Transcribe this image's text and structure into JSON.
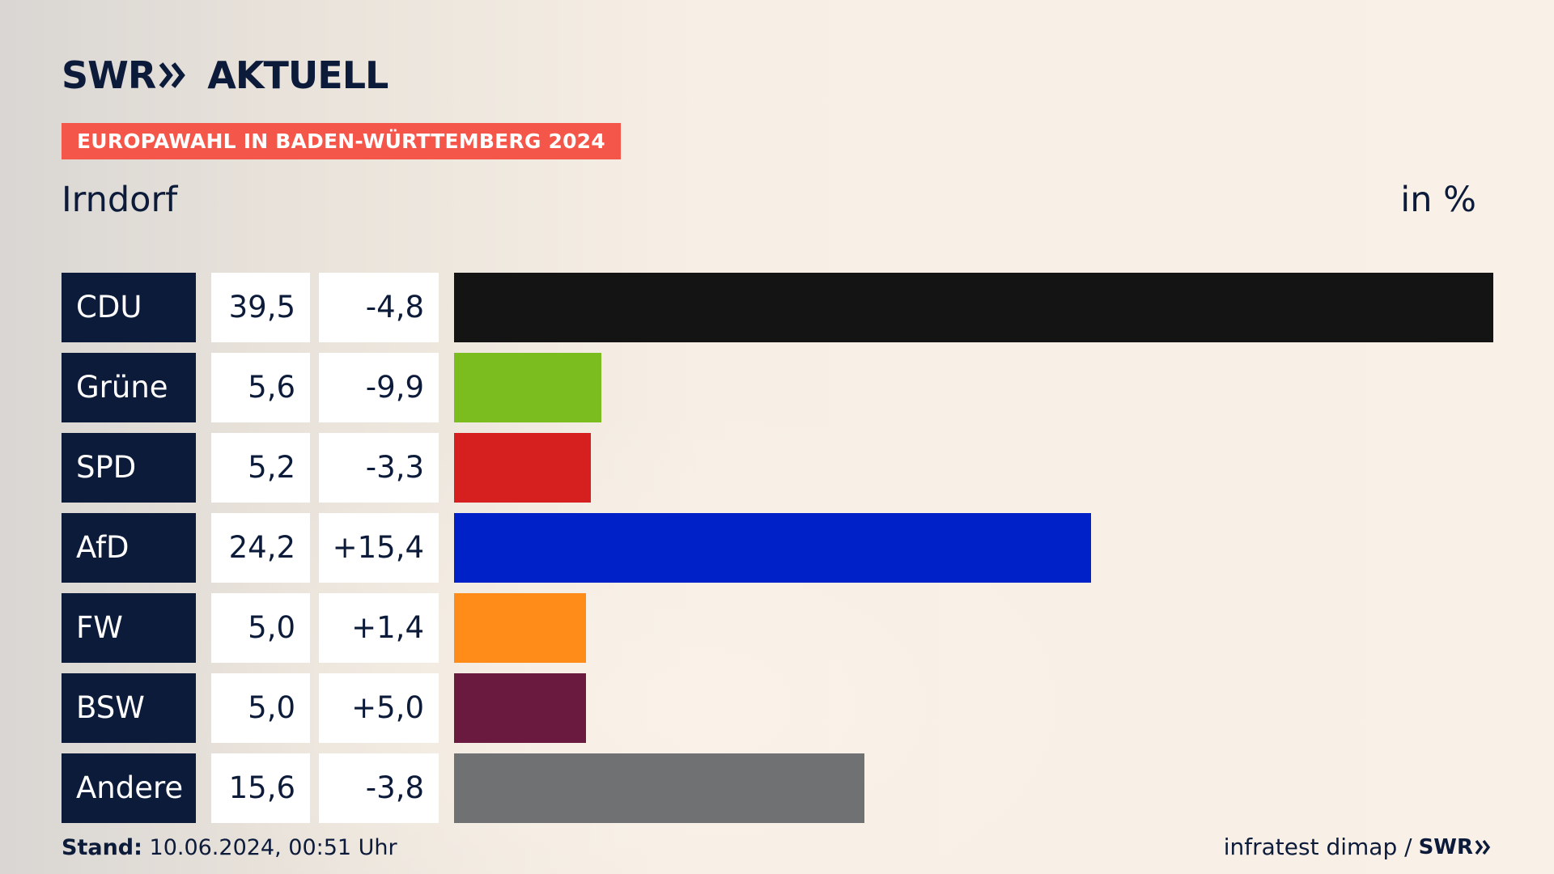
{
  "header": {
    "brand_left": "SWR",
    "brand_right": "AKTUELL",
    "badge": "EUROPAWAHL IN BADEN-WÜRTTEMBERG 2024",
    "place": "Irndorf",
    "unit": "in %"
  },
  "colors": {
    "navy": "#0d1b3a",
    "badge": "#f5564a"
  },
  "chart_data": {
    "type": "bar",
    "orientation": "horizontal",
    "categories": [
      "CDU",
      "Grüne",
      "SPD",
      "AfD",
      "FW",
      "BSW",
      "Andere"
    ],
    "values": [
      39.5,
      5.6,
      5.2,
      24.2,
      5.0,
      5.0,
      15.6
    ],
    "value_labels": [
      "39,5",
      "5,6",
      "5,2",
      "24,2",
      "5,0",
      "5,0",
      "15,6"
    ],
    "change_labels": [
      "-4,8",
      "-9,9",
      "-3,3",
      "+15,4",
      "+1,4",
      "+5,0",
      "-3,8"
    ],
    "colors": [
      "#141414",
      "#7bbd1e",
      "#d61f1f",
      "#0021c8",
      "#ff8c18",
      "#6a1a3f",
      "#707173"
    ],
    "xlim": [
      0,
      39.5
    ]
  },
  "footer": {
    "stand_label": "Stand:",
    "stand_value": "10.06.2024, 00:51 Uhr",
    "source": "infratest dimap /",
    "source_brand": "SWR"
  }
}
